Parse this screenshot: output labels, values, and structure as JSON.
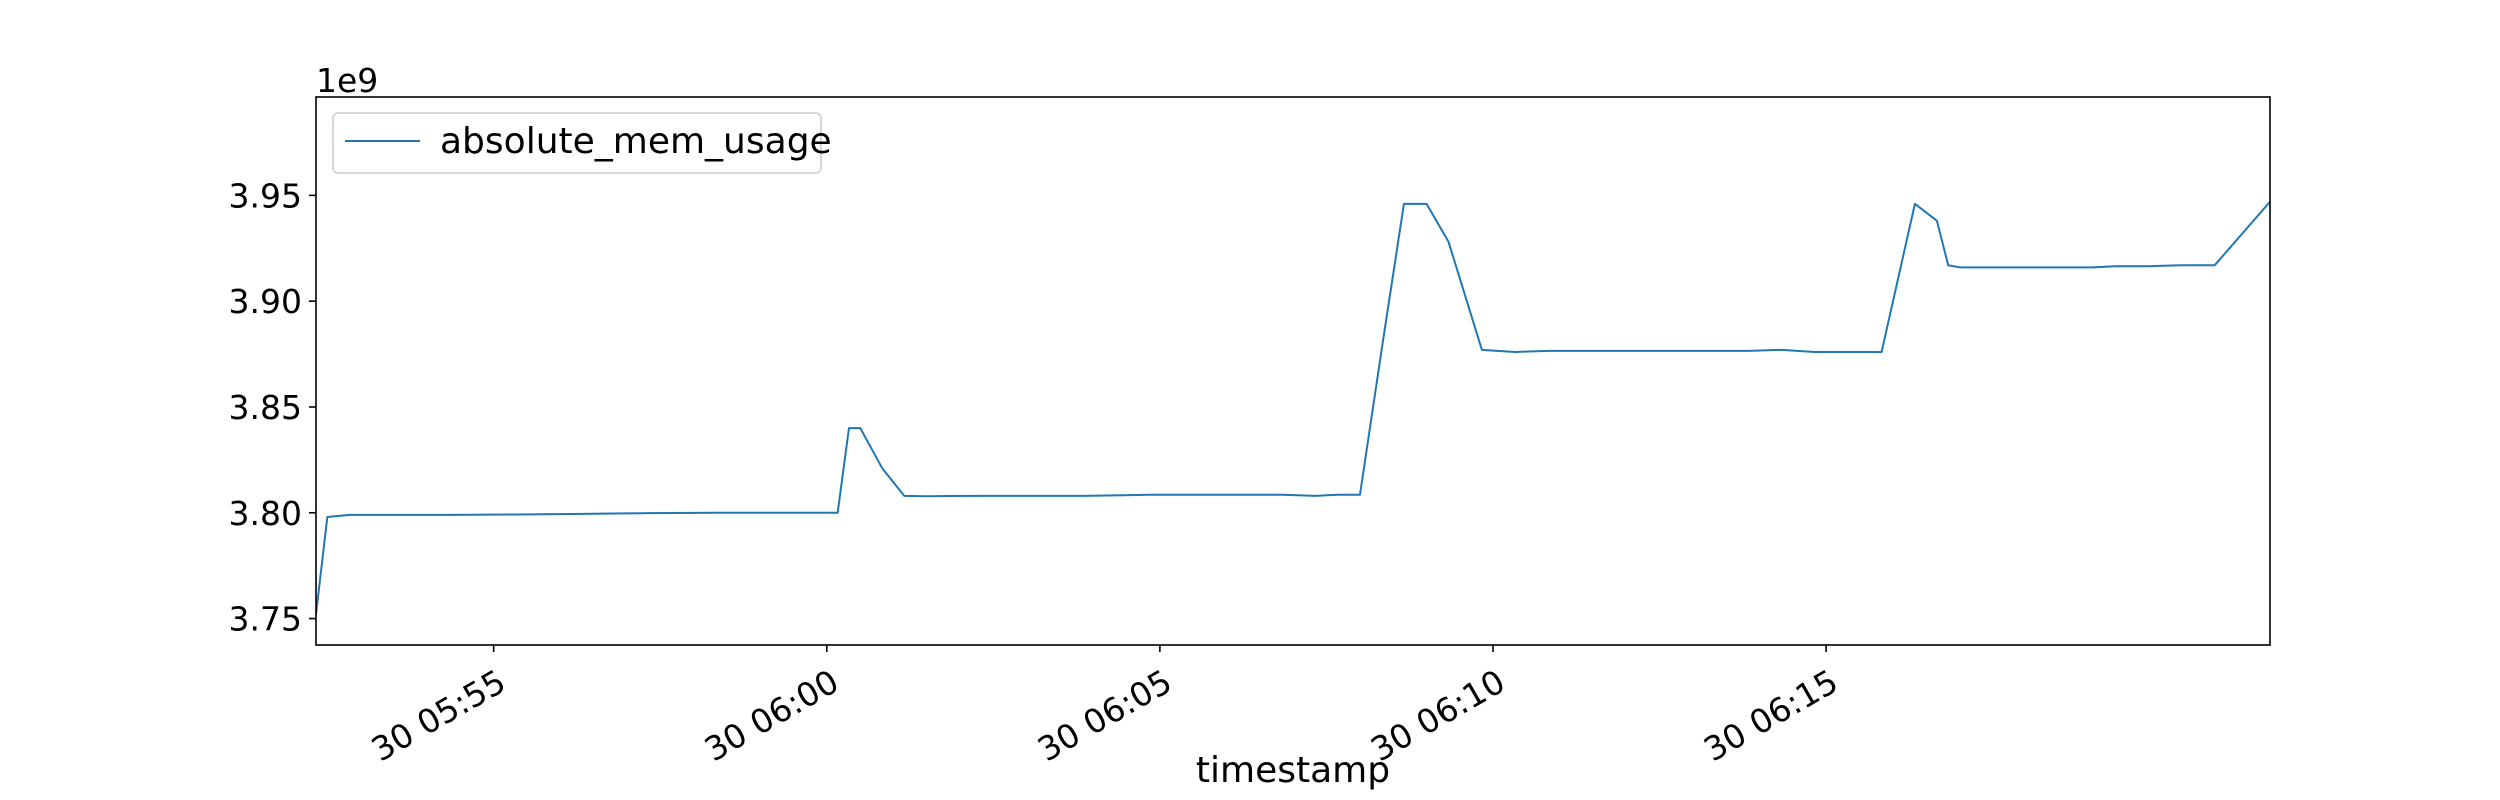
{
  "chart_data": {
    "type": "line",
    "title": "",
    "xlabel": "timestamp",
    "ylabel": "",
    "y_offset_text": "1e9",
    "y_scale": 1000000000,
    "x_unit": "minutes after 30 05:52:20",
    "xlim": [
      0,
      29.33
    ],
    "ylim": [
      3.7375,
      3.9965
    ],
    "grid": false,
    "legend_position": "upper-left",
    "yticks": [
      {
        "value": 3.75,
        "label": "3.75"
      },
      {
        "value": 3.8,
        "label": "3.80"
      },
      {
        "value": 3.85,
        "label": "3.85"
      },
      {
        "value": 3.9,
        "label": "3.90"
      },
      {
        "value": 3.95,
        "label": "3.95"
      }
    ],
    "xticks": [
      {
        "value": 2.667,
        "label": "30 05:55"
      },
      {
        "value": 7.667,
        "label": "30 06:00"
      },
      {
        "value": 12.667,
        "label": "30 06:05"
      },
      {
        "value": 17.667,
        "label": "30 06:10"
      },
      {
        "value": 22.667,
        "label": "30 06:15"
      }
    ],
    "series": [
      {
        "name": "absolute_mem_usage",
        "color": "#1f77b4",
        "x": [
          0.0,
          0.17,
          0.5,
          1.0,
          2.0,
          3.0,
          4.0,
          5.0,
          6.0,
          7.0,
          7.5,
          7.67,
          7.83,
          8.0,
          8.17,
          8.5,
          8.83,
          9.17,
          9.5,
          10.0,
          10.5,
          11.0,
          11.5,
          12.0,
          12.5,
          13.0,
          13.5,
          14.0,
          14.5,
          15.0,
          15.33,
          15.67,
          16.0,
          16.33,
          16.67,
          17.0,
          17.5,
          18.0,
          18.5,
          19.0,
          19.5,
          20.0,
          20.5,
          21.0,
          21.5,
          22.0,
          22.5,
          23.0,
          23.5,
          24.0,
          24.33,
          24.5,
          24.67,
          24.83,
          25.0,
          25.33,
          25.67,
          26.0,
          26.33,
          26.67,
          27.0,
          27.5,
          28.0,
          28.5,
          29.33
        ],
        "values": [
          3.752,
          3.798,
          3.799,
          3.799,
          3.799,
          3.7992,
          3.7995,
          3.7998,
          3.8,
          3.8,
          3.8,
          3.8,
          3.8,
          3.84,
          3.84,
          3.821,
          3.808,
          3.8078,
          3.8079,
          3.808,
          3.808,
          3.808,
          3.808,
          3.8082,
          3.8085,
          3.8085,
          3.8085,
          3.8085,
          3.8085,
          3.808,
          3.8085,
          3.8085,
          3.878,
          3.946,
          3.946,
          3.928,
          3.877,
          3.876,
          3.8765,
          3.8765,
          3.8765,
          3.8765,
          3.8765,
          3.8765,
          3.8765,
          3.877,
          3.876,
          3.876,
          3.876,
          3.946,
          3.938,
          3.917,
          3.916,
          3.916,
          3.916,
          3.916,
          3.916,
          3.916,
          3.916,
          3.916,
          3.9165,
          3.9165,
          3.917,
          3.917,
          3.947
        ]
      }
    ]
  }
}
